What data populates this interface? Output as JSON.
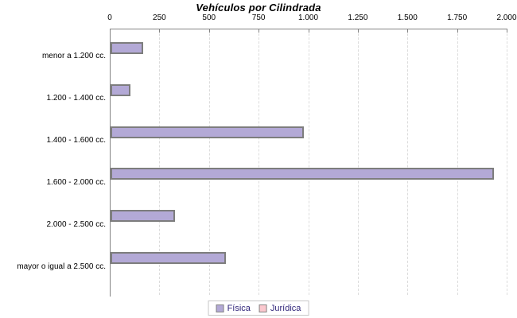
{
  "window": {
    "background": "#ffffff"
  },
  "chart_data": {
    "type": "bar",
    "orientation": "horizontal",
    "title": "Vehículos por Cilindrada",
    "categories": [
      "menor a 1.200 cc.",
      "1.200 - 1.400 cc.",
      "1.400 - 1.600 cc.",
      "1.600 - 2.000 cc.",
      "2.000 - 2.500 cc.",
      "mayor o igual a 2.500 cc."
    ],
    "series": [
      {
        "name": "Física",
        "color": "#b3a9d6",
        "values": [
          165,
          100,
          975,
          1930,
          325,
          580
        ]
      },
      {
        "name": "Jurídica",
        "color": "#fbc8ce",
        "values": [
          0,
          0,
          0,
          0,
          0,
          0
        ]
      }
    ],
    "xlabel": "",
    "ylabel": "",
    "xlim": [
      0,
      2000
    ],
    "x_ticks": [
      0,
      250,
      500,
      750,
      1000,
      1250,
      1500,
      1750,
      2000
    ],
    "x_tick_labels": [
      "0",
      "250",
      "500",
      "750",
      "1.000",
      "1.250",
      "1.500",
      "1.750",
      "2.000"
    ],
    "grid": "vertical-dashed",
    "grid_color": "#dcdcdc",
    "axis_color": "#848484",
    "bar_border_color": "#7d7d7d",
    "legend_position": "bottom",
    "legend_text_color": "#32277b",
    "tick_label_color": "#000000",
    "category_label_color": "#000000",
    "title_color": "#000000"
  }
}
